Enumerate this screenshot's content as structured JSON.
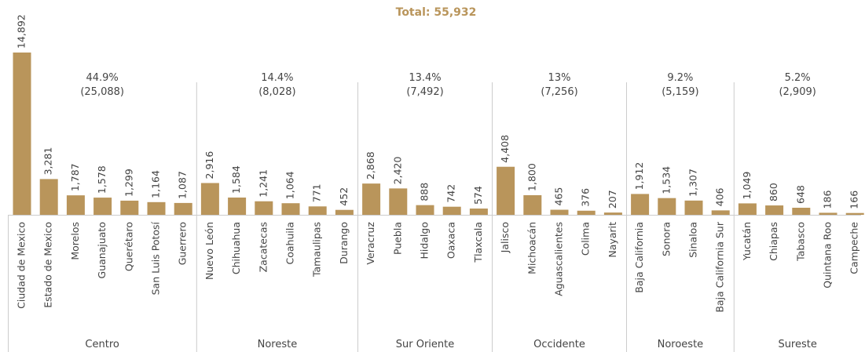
{
  "chart_data": {
    "type": "bar",
    "title": "Total: 55,932",
    "color": "#b9955b",
    "groups": [
      {
        "name": "Centro",
        "share": 44.9,
        "share_label": "44.9%",
        "total": 25088,
        "total_label": "(25,088)",
        "categories": [
          "Ciudad de Mexico",
          "Estado de Mexico",
          "Morelos",
          "Guanajuato",
          "Querétaro",
          "San Luis Potosí",
          "Guerrero"
        ],
        "values": [
          14892,
          3281,
          1787,
          1578,
          1299,
          1164,
          1087
        ],
        "value_labels": [
          "14,892",
          "3,281",
          "1,787",
          "1,578",
          "1,299",
          "1,164",
          "1,087"
        ]
      },
      {
        "name": "Noreste",
        "share": 14.4,
        "share_label": "14.4%",
        "total": 8028,
        "total_label": "(8,028)",
        "categories": [
          "Nuevo León",
          "Chihuahua",
          "Zacatecas",
          "Coahuila",
          "Tamaulipas",
          "Durango"
        ],
        "values": [
          2916,
          1584,
          1241,
          1064,
          771,
          452
        ],
        "value_labels": [
          "2,916",
          "1,584",
          "1,241",
          "1,064",
          "771",
          "452"
        ]
      },
      {
        "name": "Sur Oriente",
        "share": 13.4,
        "share_label": "13.4%",
        "total": 7492,
        "total_label": "(7,492)",
        "categories": [
          "Veracruz",
          "Puebla",
          "Hidalgo",
          "Oaxaca",
          "Tlaxcala"
        ],
        "values": [
          2868,
          2420,
          888,
          742,
          574
        ],
        "value_labels": [
          "2,868",
          "2,420",
          "888",
          "742",
          "574"
        ]
      },
      {
        "name": "Occidente",
        "share": 13,
        "share_label": "13%",
        "total": 7256,
        "total_label": "(7,256)",
        "categories": [
          "Jalisco",
          "Michoacán",
          "Aguascalientes",
          "Colima",
          "Nayarit"
        ],
        "values": [
          4408,
          1800,
          465,
          376,
          207
        ],
        "value_labels": [
          "4,408",
          "1,800",
          "465",
          "376",
          "207"
        ]
      },
      {
        "name": "Noroeste",
        "share": 9.2,
        "share_label": "9.2%",
        "total": 5159,
        "total_label": "(5,159)",
        "categories": [
          "Baja California",
          "Sonora",
          "Sinaloa",
          "Baja California Sur"
        ],
        "values": [
          1912,
          1534,
          1307,
          406
        ],
        "value_labels": [
          "1,912",
          "1,534",
          "1,307",
          "406"
        ]
      },
      {
        "name": "Sureste",
        "share": 5.2,
        "share_label": "5.2%",
        "total": 2909,
        "total_label": "(2,909)",
        "categories": [
          "Yucatán",
          "Chiapas",
          "Tabasco",
          "Quintana Roo",
          "Campeche"
        ],
        "values": [
          1049,
          860,
          648,
          186,
          166
        ],
        "value_labels": [
          "1,049",
          "860",
          "648",
          "186",
          "166"
        ]
      }
    ]
  }
}
